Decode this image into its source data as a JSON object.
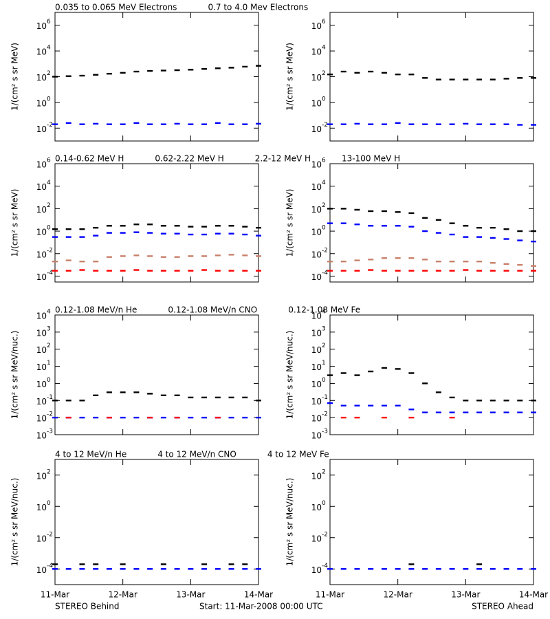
{
  "chart_data": [
    {
      "type": "scatter",
      "log": true,
      "ylabel": "1/(cm² s sr MeV)",
      "x": [
        0,
        0.2,
        0.4,
        0.6,
        0.8,
        1.0,
        1.2,
        1.4,
        1.6,
        1.8,
        2.0,
        2.2,
        2.4,
        2.6,
        2.8,
        3.0
      ],
      "xlim": [
        0,
        3
      ],
      "xticks": [
        0,
        1,
        2,
        3
      ],
      "ylim": [
        0.001,
        10000000
      ],
      "yticks": [
        {
          "value": 0.01,
          "label": "10",
          "exp": "-2"
        },
        {
          "value": 1,
          "label": "10",
          "exp": "0"
        },
        {
          "value": 100,
          "label": "10",
          "exp": "2"
        },
        {
          "value": 10000,
          "label": "10",
          "exp": "4"
        },
        {
          "value": 1000000,
          "label": "10",
          "exp": "6"
        }
      ],
      "series": [
        {
          "name": "0.035 to 0.065 MeV Electrons",
          "color": "#000000",
          "behind": [
            100,
            110,
            120,
            140,
            170,
            200,
            250,
            280,
            300,
            320,
            350,
            400,
            450,
            500,
            600,
            700
          ],
          "ahead": [
            150,
            250,
            200,
            250,
            200,
            150,
            150,
            80,
            60,
            60,
            60,
            60,
            60,
            70,
            80,
            80
          ]
        },
        {
          "name": "0.7 to 4.0 Mev Electrons",
          "color": "#0000ff",
          "behind": [
            0.02,
            0.025,
            0.02,
            0.022,
            0.02,
            0.02,
            0.025,
            0.02,
            0.02,
            0.022,
            0.02,
            0.02,
            0.025,
            0.02,
            0.02,
            0.022
          ],
          "ahead": [
            0.02,
            0.02,
            0.022,
            0.02,
            0.02,
            0.025,
            0.02,
            0.02,
            0.02,
            0.02,
            0.022,
            0.02,
            0.02,
            0.02,
            0.018,
            0.018
          ]
        }
      ]
    },
    {
      "type": "scatter",
      "log": true,
      "ylabel": "1/(cm² s sr MeV)",
      "x": [
        0,
        0.2,
        0.4,
        0.6,
        0.8,
        1.0,
        1.2,
        1.4,
        1.6,
        1.8,
        2.0,
        2.2,
        2.4,
        2.6,
        2.8,
        3.0
      ],
      "xlim": [
        0,
        3
      ],
      "xticks": [
        0,
        1,
        2,
        3
      ],
      "ylim": [
        3e-05,
        1000000
      ],
      "yticks": [
        {
          "value": 0.0001,
          "label": "10",
          "exp": "-4"
        },
        {
          "value": 0.01,
          "label": "10",
          "exp": "-2"
        },
        {
          "value": 1,
          "label": "10",
          "exp": "0"
        },
        {
          "value": 100,
          "label": "10",
          "exp": "2"
        },
        {
          "value": 10000,
          "label": "10",
          "exp": "4"
        },
        {
          "value": 1000000,
          "label": "10",
          "exp": "6"
        }
      ],
      "series": [
        {
          "name": "0.14-0.62 MeV H",
          "color": "#000000",
          "behind": [
            1.5,
            1.5,
            1.5,
            2,
            3,
            3,
            4,
            4,
            3,
            3,
            2.5,
            2.5,
            3,
            3,
            2.5,
            2
          ],
          "ahead": [
            100,
            100,
            80,
            60,
            60,
            50,
            40,
            15,
            10,
            5,
            3,
            2,
            2,
            1.5,
            1,
            1
          ]
        },
        {
          "name": "0.62-2.22 MeV H",
          "color": "#0000ff",
          "behind": [
            0.3,
            0.3,
            0.3,
            0.4,
            0.7,
            0.7,
            0.8,
            0.7,
            0.6,
            0.6,
            0.5,
            0.5,
            0.6,
            0.6,
            0.5,
            0.4
          ],
          "ahead": [
            5,
            5,
            4,
            3,
            3,
            3,
            2.5,
            1,
            0.7,
            0.5,
            0.3,
            0.3,
            0.25,
            0.2,
            0.15,
            0.12
          ]
        },
        {
          "name": "2.2-12 MeV H",
          "color": "#c8806a",
          "behind": [
            0.002,
            0.0025,
            0.002,
            0.002,
            0.005,
            0.006,
            0.007,
            0.006,
            0.005,
            0.005,
            0.006,
            0.006,
            0.007,
            0.008,
            0.007,
            0.006
          ],
          "ahead": [
            0.002,
            0.002,
            0.0025,
            0.003,
            0.004,
            0.004,
            0.004,
            0.003,
            0.002,
            0.002,
            0.002,
            0.002,
            0.0015,
            0.0012,
            0.001,
            0.0008
          ]
        },
        {
          "name": "13-100 MeV H",
          "color": "#ff0000",
          "behind": [
            0.0003,
            0.0003,
            0.00035,
            0.0003,
            0.0003,
            0.0003,
            0.00035,
            0.0003,
            0.0003,
            0.0003,
            0.0003,
            0.00035,
            0.0003,
            0.0003,
            0.0003,
            0.0003
          ],
          "ahead": [
            0.0003,
            0.0003,
            0.0003,
            0.00035,
            0.0003,
            0.0003,
            0.0003,
            0.0003,
            0.0003,
            0.0003,
            0.00035,
            0.0003,
            0.0003,
            0.0003,
            0.0003,
            0.0003
          ]
        }
      ]
    },
    {
      "type": "scatter",
      "log": true,
      "ylabel": "1/(cm² s sr MeV/nuc.)",
      "x": [
        0,
        0.2,
        0.4,
        0.6,
        0.8,
        1.0,
        1.2,
        1.4,
        1.6,
        1.8,
        2.0,
        2.2,
        2.4,
        2.6,
        2.8,
        3.0
      ],
      "xlim": [
        0,
        3
      ],
      "xticks": [
        0,
        1,
        2,
        3
      ],
      "ylim": [
        0.001,
        10000
      ],
      "yticks": [
        {
          "value": 0.001,
          "label": "10",
          "exp": "-3"
        },
        {
          "value": 0.01,
          "label": "10",
          "exp": "-2"
        },
        {
          "value": 0.1,
          "label": "10",
          "exp": "-1"
        },
        {
          "value": 1,
          "label": "10",
          "exp": "0"
        },
        {
          "value": 10,
          "label": "10",
          "exp": "1"
        },
        {
          "value": 100,
          "label": "10",
          "exp": "2"
        },
        {
          "value": 1000,
          "label": "10",
          "exp": "3"
        },
        {
          "value": 10000,
          "label": "10",
          "exp": "4"
        }
      ],
      "series": [
        {
          "name": "0.12-1.08 MeV/n He",
          "color": "#000000",
          "behind": [
            0.1,
            0.1,
            0.1,
            0.2,
            0.3,
            0.3,
            0.3,
            0.25,
            0.2,
            0.2,
            0.15,
            0.15,
            0.15,
            0.15,
            0.15,
            0.1
          ],
          "ahead": [
            3,
            4,
            3,
            5,
            8,
            7,
            4,
            1,
            0.3,
            0.15,
            0.1,
            0.1,
            0.1,
            0.1,
            0.1,
            0.1
          ]
        },
        {
          "name": "0.12-1.08 MeV/n CNO",
          "color": "#0000ff",
          "behind": [
            0.01,
            0.01,
            0.01,
            0.01,
            0.01,
            0.01,
            0.01,
            0.01,
            0.01,
            0.01,
            0.01,
            0.01,
            0.01,
            0.01,
            0.01,
            0.01
          ],
          "ahead": [
            0.07,
            0.05,
            0.05,
            0.05,
            0.05,
            0.05,
            0.03,
            0.02,
            0.02,
            0.02,
            0.02,
            0.02,
            0.02,
            0.02,
            0.02,
            0.02
          ]
        },
        {
          "name": "0.12-1.08 MeV Fe",
          "color": "#ff0000",
          "behind": [
            null,
            0.01,
            null,
            null,
            0.01,
            null,
            null,
            0.01,
            null,
            0.01,
            null,
            null,
            0.01,
            null,
            null,
            null
          ],
          "ahead": [
            null,
            0.01,
            0.01,
            null,
            0.01,
            null,
            0.01,
            null,
            null,
            0.01,
            null,
            null,
            null,
            null,
            null,
            null
          ]
        }
      ]
    },
    {
      "type": "scatter",
      "log": true,
      "ylabel": "1/(cm² s sr MeV/nuc.)",
      "x": [
        0,
        0.2,
        0.4,
        0.6,
        0.8,
        1.0,
        1.2,
        1.4,
        1.6,
        1.8,
        2.0,
        2.2,
        2.4,
        2.6,
        2.8,
        3.0
      ],
      "xlim": [
        0,
        3
      ],
      "xticks": [
        {
          "value": 0,
          "label": "11-Mar"
        },
        {
          "value": 1,
          "label": "12-Mar"
        },
        {
          "value": 2,
          "label": "13-Mar"
        },
        {
          "value": 3,
          "label": "14-Mar"
        }
      ],
      "ylim": [
        1e-05,
        1000
      ],
      "yticks": [
        {
          "value": 0.0001,
          "label": "10",
          "exp": "-4"
        },
        {
          "value": 0.01,
          "label": "10",
          "exp": "-2"
        },
        {
          "value": 1,
          "label": "10",
          "exp": "0"
        },
        {
          "value": 100,
          "label": "10",
          "exp": "2"
        }
      ],
      "series": [
        {
          "name": "4 to 12 MeV/n He",
          "color": "#000000",
          "behind": [
            0.0002,
            null,
            0.0002,
            0.0002,
            null,
            0.0002,
            null,
            null,
            0.0002,
            null,
            null,
            0.0002,
            null,
            0.0002,
            0.0002,
            null
          ],
          "ahead": [
            null,
            null,
            null,
            null,
            null,
            null,
            0.0002,
            null,
            null,
            null,
            null,
            0.0002,
            null,
            null,
            null,
            null
          ]
        },
        {
          "name": "4 to 12 MeV/n CNO",
          "color": "#0000ff",
          "behind": [
            0.0001,
            0.0001,
            0.0001,
            0.0001,
            0.0001,
            0.0001,
            0.0001,
            0.0001,
            0.0001,
            0.0001,
            0.0001,
            0.0001,
            0.0001,
            0.0001,
            0.0001,
            0.0001
          ],
          "ahead": [
            0.0001,
            0.0001,
            0.0001,
            0.0001,
            0.0001,
            0.0001,
            0.0001,
            0.0001,
            0.0001,
            0.0001,
            0.0001,
            0.0001,
            0.0001,
            0.0001,
            0.0001,
            0.0001
          ]
        },
        {
          "name": "4 to 12 MeV Fe",
          "color": "#ff0000",
          "behind": [
            null,
            null,
            null,
            null,
            null,
            null,
            null,
            null,
            null,
            null,
            null,
            null,
            null,
            null,
            null,
            null
          ],
          "ahead": [
            null,
            null,
            null,
            null,
            null,
            null,
            null,
            null,
            null,
            null,
            null,
            null,
            null,
            null,
            null,
            null
          ]
        }
      ]
    }
  ],
  "footer": {
    "left": "STEREO Behind",
    "center": "Start: 11-Mar-2008 00:00 UTC",
    "right": "STEREO Ahead"
  }
}
